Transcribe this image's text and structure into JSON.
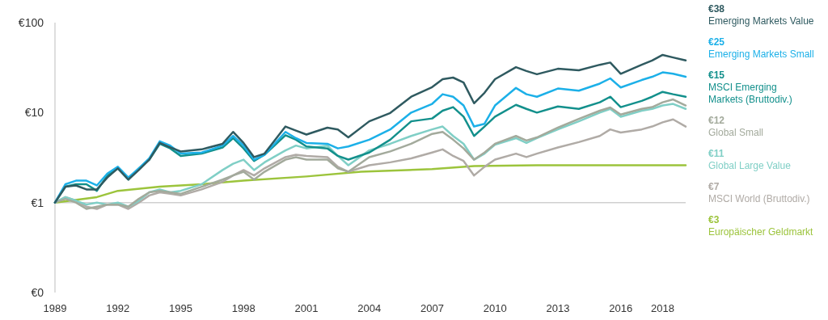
{
  "chart_data": {
    "type": "line",
    "log": "y",
    "legend": "right",
    "grid": false,
    "line_style": "solid",
    "marker": "none",
    "x": [
      1989,
      1989.5,
      1990,
      1990.5,
      1991,
      1991.5,
      1992,
      1992.5,
      1993,
      1993.5,
      1994,
      1994.5,
      1995,
      1996,
      1997,
      1997.5,
      1998,
      1998.5,
      1999,
      2000,
      2000.5,
      2001,
      2002,
      2002.5,
      2003,
      2004,
      2005,
      2006,
      2007,
      2007.5,
      2008,
      2008.5,
      2009,
      2009.5,
      2010,
      2011,
      2011.5,
      2012,
      2013,
      2014,
      2015,
      2015.5,
      2016,
      2017,
      2017.5,
      2018,
      2018.5,
      2019.1
    ],
    "xlim": [
      1989,
      2019.1
    ],
    "xticks": [
      1989,
      1992,
      1995,
      1998,
      2001,
      2004,
      2007,
      2010,
      2013,
      2016,
      2018
    ],
    "annotations": [
      "€38",
      "€25",
      "€15",
      "€12",
      "€11",
      "€7",
      "€3"
    ],
    "ylim": [
      0.1,
      100
    ],
    "yticks": [
      {
        "value": 0.1,
        "label": "€0"
      },
      {
        "value": 1,
        "label": "€1"
      },
      {
        "value": 10,
        "label": "€10"
      },
      {
        "value": 100,
        "label": "€100"
      }
    ],
    "ref_lines": [
      {
        "axis": "y",
        "value": 1,
        "color": "#d0d0d0"
      }
    ],
    "series": [
      {
        "name": "Europäischer Geldmarkt",
        "color": "#9cc43c",
        "x": [
          1989,
          1991,
          1992,
          1994,
          1996,
          1998,
          2001,
          2003.6,
          2007,
          2009,
          2012,
          2019.1
        ],
        "values": [
          1,
          1.15,
          1.35,
          1.5,
          1.6,
          1.75,
          1.95,
          2.2,
          2.35,
          2.55,
          2.6,
          2.6
        ]
      },
      {
        "name": "MSCI World (Bruttodiv.)",
        "color": "#b0aba6",
        "values": [
          1.0,
          1.15,
          1.05,
          0.9,
          0.85,
          0.95,
          0.95,
          0.85,
          1.0,
          1.2,
          1.3,
          1.25,
          1.2,
          1.4,
          1.7,
          2.0,
          2.3,
          2.0,
          2.4,
          3.2,
          3.4,
          3.3,
          3.2,
          2.5,
          2.2,
          2.6,
          2.8,
          3.1,
          3.6,
          3.9,
          3.3,
          2.9,
          2.0,
          2.5,
          3.0,
          3.5,
          3.2,
          3.5,
          4.1,
          4.7,
          5.5,
          6.5,
          6.0,
          6.5,
          7.0,
          7.8,
          8.4,
          7
        ]
      },
      {
        "name": "Global Large Value",
        "color": "#80cfc6",
        "values": [
          1.0,
          1.15,
          1.05,
          0.95,
          1.0,
          0.95,
          1.0,
          0.9,
          1.05,
          1.3,
          1.4,
          1.3,
          1.35,
          1.6,
          2.3,
          2.7,
          3.0,
          2.3,
          2.8,
          3.8,
          4.3,
          4.0,
          4.3,
          3.3,
          2.6,
          3.8,
          4.5,
          5.5,
          6.5,
          7.0,
          5.5,
          4.5,
          3.0,
          3.5,
          4.4,
          5.2,
          4.6,
          5.2,
          6.5,
          8.0,
          10,
          11,
          9,
          10.5,
          11,
          12,
          12.5,
          11
        ]
      },
      {
        "name": "Global Small",
        "color": "#a3aa9c",
        "values": [
          1.0,
          1.1,
          1.0,
          0.85,
          0.9,
          0.95,
          0.95,
          0.9,
          1.1,
          1.3,
          1.35,
          1.3,
          1.25,
          1.5,
          1.8,
          2.0,
          2.2,
          1.8,
          2.2,
          3.0,
          3.2,
          3.0,
          3.0,
          2.4,
          2.2,
          3.2,
          3.7,
          4.5,
          5.8,
          6.1,
          5.0,
          4.0,
          3.0,
          3.6,
          4.5,
          5.5,
          4.9,
          5.3,
          6.8,
          8.5,
          10.5,
          11.4,
          9.5,
          11,
          11.5,
          13,
          14,
          12
        ]
      },
      {
        "name": "MSCI Emerging Markets (Bruttodiv.)",
        "color": "#13908c",
        "values": [
          1.0,
          1.5,
          1.6,
          1.6,
          1.35,
          2.0,
          2.4,
          1.8,
          2.4,
          3.0,
          4.5,
          4.0,
          3.3,
          3.5,
          4.1,
          5.2,
          4.0,
          2.9,
          3.4,
          5.6,
          5.0,
          4.2,
          4.0,
          3.3,
          3.0,
          3.6,
          5.0,
          8.0,
          8.6,
          10.5,
          11.5,
          9,
          5.5,
          7,
          9,
          12.2,
          11,
          10,
          11.7,
          11,
          13,
          15,
          11.5,
          13.5,
          15,
          17,
          16,
          15
        ]
      },
      {
        "name": "Emerging Markets Small",
        "color": "#1cb0e8",
        "values": [
          1.0,
          1.6,
          1.75,
          1.75,
          1.55,
          2.1,
          2.5,
          1.9,
          2.4,
          3.1,
          4.8,
          4.3,
          3.5,
          3.6,
          4.3,
          5.5,
          4.3,
          3.0,
          3.4,
          6.1,
          5.2,
          4.6,
          4.5,
          4.0,
          4.2,
          5.0,
          6.5,
          10,
          12.5,
          16,
          15,
          12,
          7.0,
          7.5,
          12,
          18.8,
          16,
          15,
          18.5,
          17.5,
          21,
          24,
          19,
          23,
          25,
          28,
          27,
          25
        ]
      },
      {
        "name": "Emerging Markets Value",
        "color": "#2f5a60",
        "values": [
          1.0,
          1.5,
          1.55,
          1.4,
          1.4,
          1.9,
          2.4,
          1.8,
          2.3,
          3.0,
          4.6,
          4.1,
          3.7,
          3.9,
          4.5,
          6.1,
          4.6,
          3.2,
          3.5,
          7.0,
          6.3,
          5.7,
          6.8,
          6.5,
          5.3,
          8.0,
          9.9,
          15,
          19.2,
          23.5,
          24.5,
          21.6,
          12.7,
          16.6,
          23.5,
          32,
          29,
          26.7,
          30.7,
          29.5,
          34,
          36,
          27,
          34,
          37.9,
          43.8,
          41,
          38
        ]
      }
    ]
  }
}
